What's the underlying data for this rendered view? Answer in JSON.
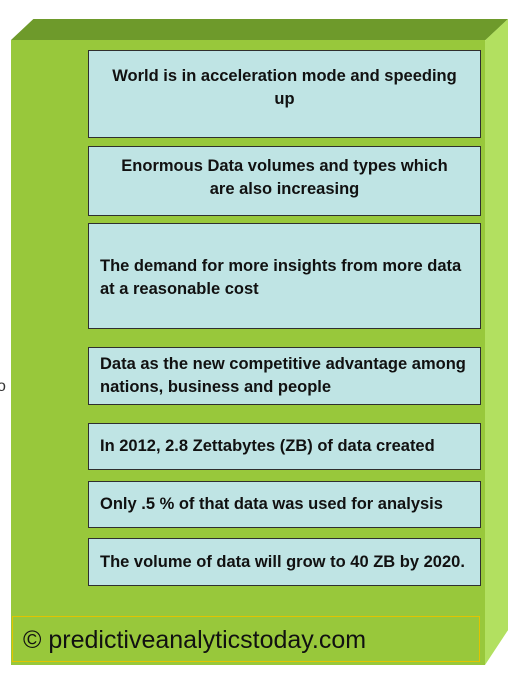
{
  "diagram": {
    "edge_mark": "o",
    "boxes": [
      "World is in acceleration mode and speeding up",
      "Enormous Data volumes and types which are also increasing",
      "The demand for more insights from more data at a reasonable cost",
      "Data as the new competitive advantage among nations, business and people",
      "In 2012, 2.8 Zettabytes (ZB) of data created",
      "Only .5 % of that data was used for analysis",
      "The volume of data will grow to 40 ZB by 2020."
    ],
    "footer": "© predictiveanalyticstoday.com"
  },
  "colors": {
    "slab_face": "#98c83b",
    "slab_top": "#6e9a2b",
    "slab_side": "#b2e060",
    "box_fill": "#bfe4e4",
    "footer_border": "#e2c400"
  }
}
